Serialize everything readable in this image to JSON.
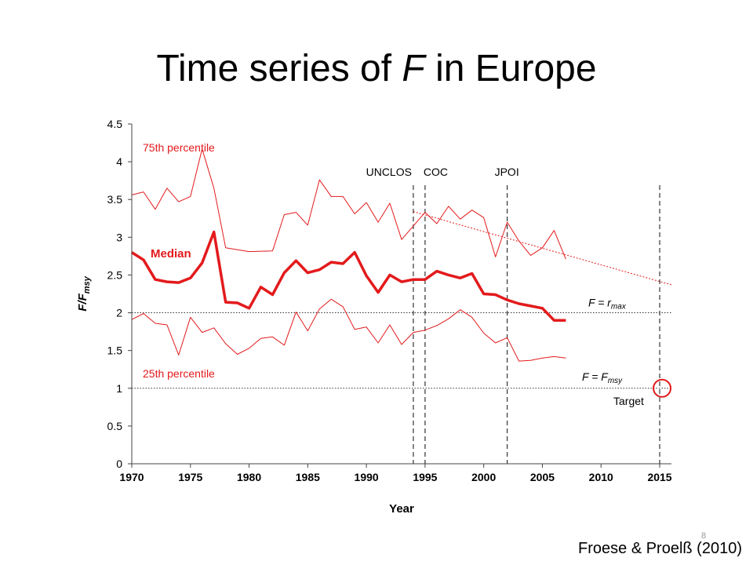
{
  "slide": {
    "title_prefix": "Time series of ",
    "title_var": "F",
    "title_suffix": " in Europe",
    "citation": "Froese & Proelß (2010)",
    "page_number": "8"
  },
  "chart_data": {
    "type": "line",
    "title": "",
    "xlabel": "Year",
    "ylabel": {
      "main": "F/F",
      "sub": "msy"
    },
    "xlim": [
      1970,
      2016
    ],
    "ylim": [
      0,
      4.5
    ],
    "xticks": [
      1970,
      1975,
      1980,
      1985,
      1990,
      1995,
      2000,
      2005,
      2010,
      2015
    ],
    "yticks": [
      "0",
      "0.5",
      "1",
      "1.5",
      "2",
      "2.5",
      "3",
      "3.5",
      "4",
      "4.5"
    ],
    "series": [
      {
        "name": "75th percentile",
        "color": "#e31a1c",
        "x": [
          1970,
          1971,
          1972,
          1973,
          1974,
          1975,
          1976,
          1977,
          1978,
          1980,
          1982,
          1983,
          1984,
          1985,
          1986,
          1987,
          1988,
          1989,
          1990,
          1991,
          1992,
          1993,
          1994,
          1995,
          1996,
          1997,
          1998,
          1999,
          2000,
          2001,
          2002,
          2003,
          2004,
          2005,
          2006,
          2007
        ],
        "values": [
          3.56,
          3.6,
          3.37,
          3.65,
          3.47,
          3.54,
          4.17,
          3.65,
          2.86,
          2.81,
          2.82,
          3.3,
          3.33,
          3.16,
          3.76,
          3.54,
          3.54,
          3.31,
          3.46,
          3.2,
          3.45,
          2.97,
          3.15,
          3.33,
          3.18,
          3.41,
          3.24,
          3.36,
          3.26,
          2.74,
          3.2,
          2.95,
          2.76,
          2.86,
          3.09,
          2.71
        ]
      },
      {
        "name": "Median",
        "color": "#e31a1c",
        "x": [
          1970,
          1971,
          1972,
          1973,
          1974,
          1975,
          1976,
          1977,
          1978,
          1979,
          1980,
          1981,
          1982,
          1983,
          1984,
          1985,
          1986,
          1987,
          1988,
          1989,
          1990,
          1991,
          1992,
          1993,
          1994,
          1995,
          1996,
          1997,
          1998,
          1999,
          2000,
          2001,
          2002,
          2003,
          2004,
          2005,
          2006,
          2007
        ],
        "values": [
          2.8,
          2.7,
          2.44,
          2.41,
          2.4,
          2.46,
          2.66,
          3.07,
          2.14,
          2.13,
          2.06,
          2.34,
          2.24,
          2.53,
          2.69,
          2.53,
          2.57,
          2.67,
          2.65,
          2.8,
          2.49,
          2.27,
          2.5,
          2.41,
          2.44,
          2.44,
          2.55,
          2.5,
          2.46,
          2.52,
          2.25,
          2.24,
          2.17,
          2.12,
          2.09,
          2.06,
          1.9,
          1.9
        ]
      },
      {
        "name": "25th percentile",
        "color": "#e31a1c",
        "x": [
          1970,
          1971,
          1972,
          1973,
          1974,
          1975,
          1976,
          1977,
          1978,
          1979,
          1980,
          1981,
          1982,
          1983,
          1984,
          1985,
          1986,
          1987,
          1988,
          1989,
          1990,
          1991,
          1992,
          1993,
          1994,
          1995,
          1996,
          1997,
          1998,
          1999,
          2000,
          2001,
          2002,
          2003,
          2004,
          2005,
          2006,
          2007
        ],
        "values": [
          1.91,
          1.99,
          1.86,
          1.84,
          1.44,
          1.94,
          1.74,
          1.8,
          1.59,
          1.45,
          1.53,
          1.66,
          1.68,
          1.57,
          2.01,
          1.76,
          2.05,
          2.18,
          2.08,
          1.78,
          1.81,
          1.6,
          1.84,
          1.58,
          1.74,
          1.77,
          1.83,
          1.92,
          2.04,
          1.94,
          1.73,
          1.6,
          1.67,
          1.36,
          1.37,
          1.4,
          1.42,
          1.4
        ]
      }
    ],
    "trend": {
      "x": [
        1994,
        2016
      ],
      "values": [
        3.34,
        2.37
      ],
      "color": "#e31a1c"
    },
    "events": [
      {
        "label": "UNCLOS",
        "x": 1994
      },
      {
        "label": "COC",
        "x": 1995
      },
      {
        "label": "JPOI",
        "x": 2002
      },
      {
        "label": "",
        "x": 2015
      }
    ],
    "reference_lines": [
      {
        "label_main": "F = r",
        "label_sub": "max",
        "y": 2
      },
      {
        "label_main": "F = F",
        "label_sub": "msy",
        "y": 1
      }
    ],
    "annotations": {
      "p75": "75th percentile",
      "median": "Median",
      "p25": "25th percentile",
      "target": "Target"
    },
    "target_point": {
      "x": 2015,
      "y": 1,
      "color": "#e31a1c"
    },
    "grid": false
  }
}
